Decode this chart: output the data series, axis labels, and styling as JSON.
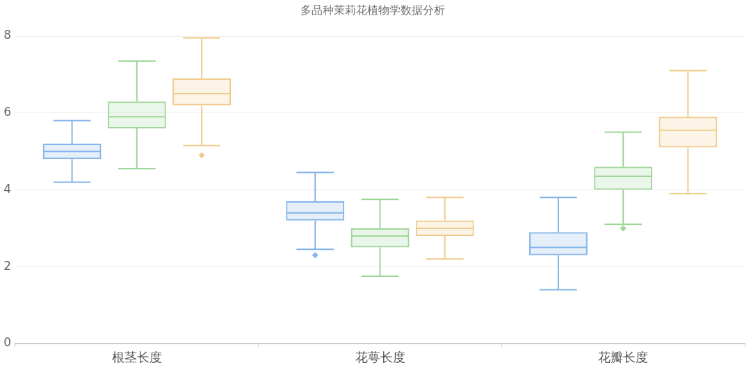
{
  "chart_data": {
    "type": "box",
    "title": "多品种茉莉花植物学数据分析",
    "categories": [
      "根茎长度",
      "花萼长度",
      "花瓣长度"
    ],
    "series": [
      {
        "color": "#84b4e8",
        "boxes": [
          {
            "low": 4.2,
            "q1": 4.8,
            "median": 5.0,
            "q3": 5.2,
            "high": 5.8
          },
          {
            "low": 2.45,
            "q1": 3.2,
            "median": 3.4,
            "q3": 3.7,
            "high": 4.45,
            "outliers": [
              2.3
            ]
          },
          {
            "low": 1.4,
            "q1": 2.3,
            "median": 2.5,
            "q3": 2.9,
            "high": 3.8
          }
        ]
      },
      {
        "color": "#a0d699",
        "boxes": [
          {
            "low": 4.55,
            "q1": 5.6,
            "median": 5.9,
            "q3": 6.3,
            "high": 7.35
          },
          {
            "low": 1.75,
            "q1": 2.5,
            "median": 2.8,
            "q3": 3.0,
            "high": 3.75
          },
          {
            "low": 3.1,
            "q1": 4.0,
            "median": 4.35,
            "q3": 4.6,
            "high": 5.5,
            "outliers": [
              3.0
            ]
          }
        ]
      },
      {
        "color": "#f0cc8c",
        "boxes": [
          {
            "low": 5.15,
            "q1": 6.2,
            "median": 6.5,
            "q3": 6.9,
            "high": 7.95,
            "outliers": [
              4.9
            ]
          },
          {
            "low": 2.2,
            "q1": 2.8,
            "median": 3.0,
            "q3": 3.2,
            "high": 3.8
          },
          {
            "low": 3.9,
            "q1": 5.1,
            "median": 5.55,
            "q3": 5.9,
            "high": 7.1
          }
        ]
      }
    ],
    "ylim": [
      0,
      8
    ],
    "yticks": [
      0,
      2,
      4,
      6,
      8
    ],
    "grid": "y"
  }
}
